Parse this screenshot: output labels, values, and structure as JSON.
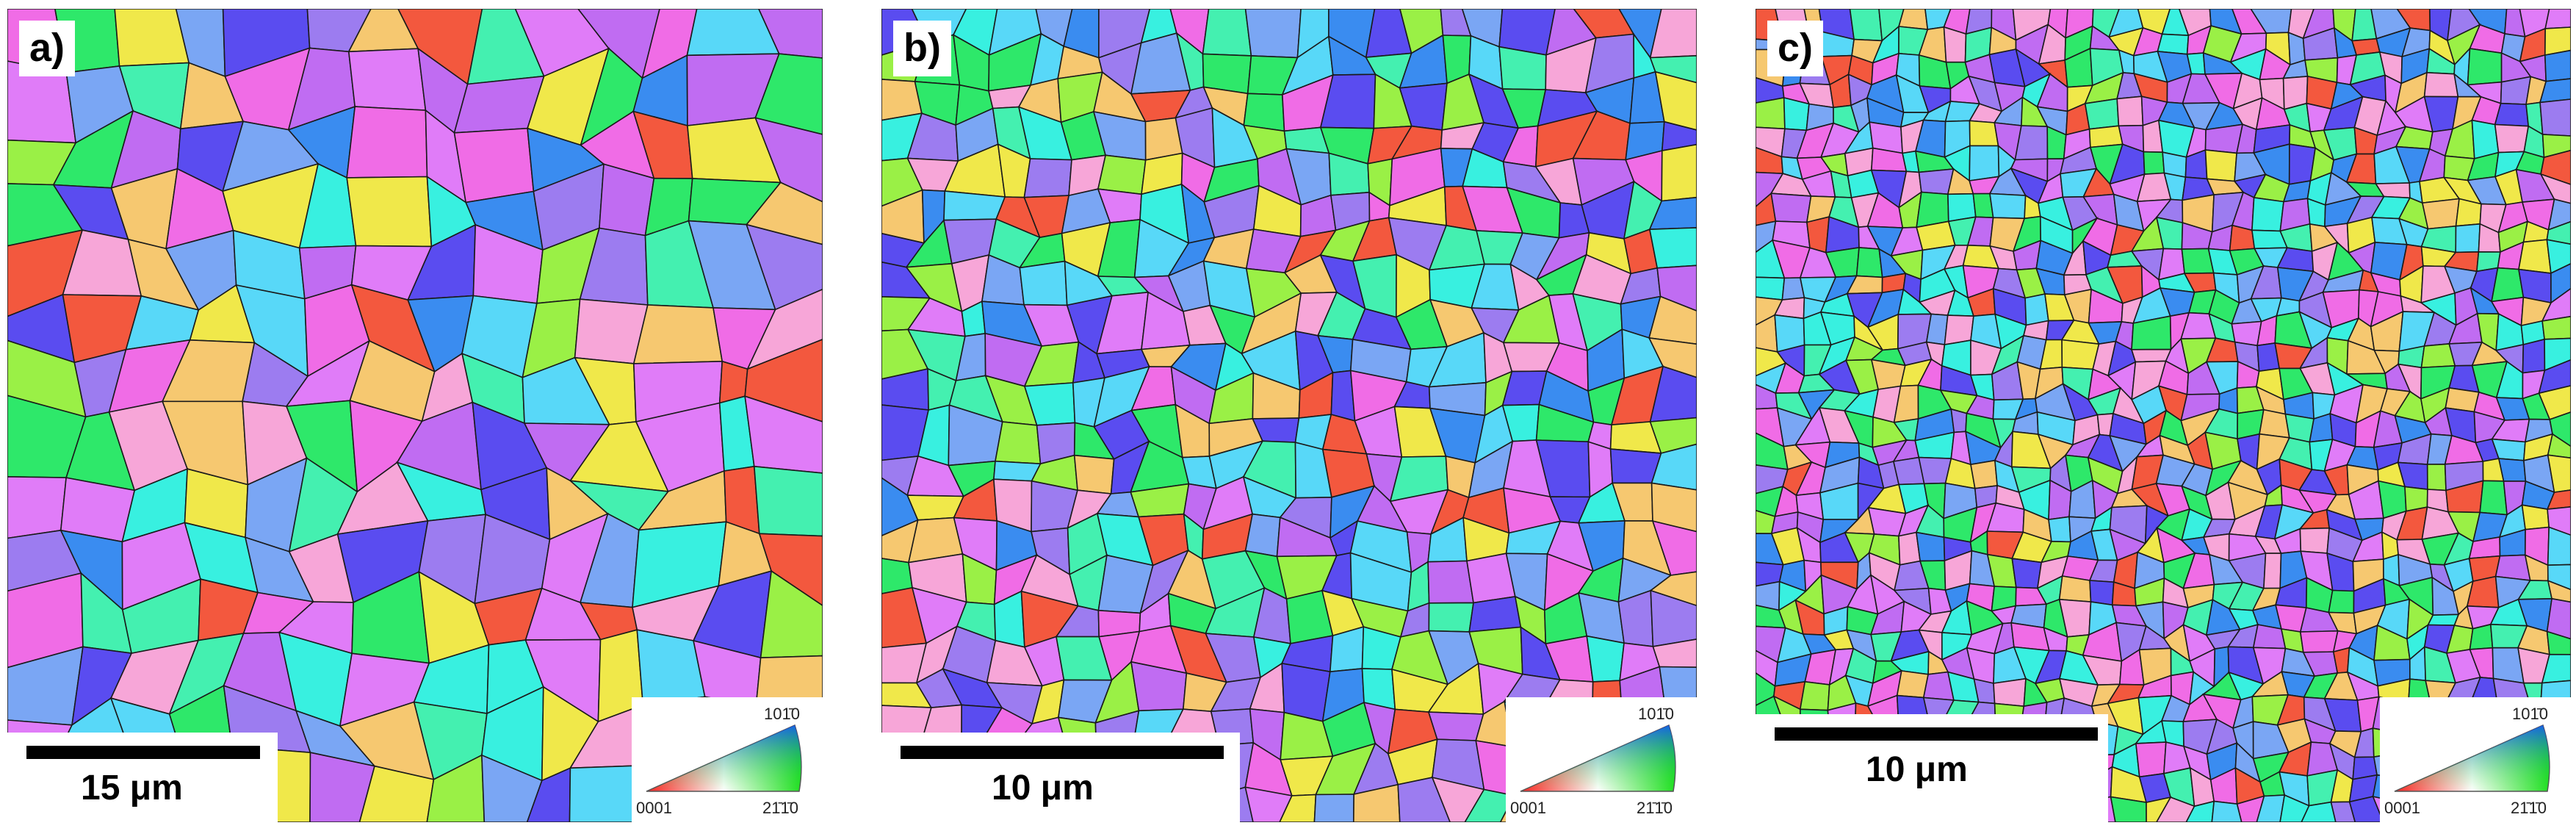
{
  "panels": [
    {
      "label": "a)",
      "scalebar_label": "15 μm",
      "legend": {
        "top_label": "101̄0",
        "left_label": "0001",
        "right_label": "21̄1̄0"
      }
    },
    {
      "label": "b)",
      "scalebar_label": "10 μm",
      "legend": {
        "top_label": "101̄0",
        "left_label": "0001",
        "right_label": "21̄1̄0"
      }
    },
    {
      "label": "c)",
      "scalebar_label": "10 μm",
      "legend": {
        "top_label": "101̄0",
        "left_label": "0001",
        "right_label": "21̄1̄0"
      }
    }
  ],
  "colors": {
    "grain_palette": [
      "#2ee86a",
      "#38f0e0",
      "#3a8cf0",
      "#5a4cf0",
      "#9c7cf0",
      "#c06cf2",
      "#f06ce6",
      "#f7a6d8",
      "#f0e84a",
      "#f6c870",
      "#f3583e",
      "#9af046",
      "#58d8f8",
      "#7aa6f4",
      "#44f0b0",
      "#e07cf8"
    ],
    "boundary": "#1a1a1a",
    "twin_boundary": "#e03a2a",
    "legend_corner_0001": "#ff2020",
    "legend_corner_1010": "#1050ff",
    "legend_corner_2110": "#20e020"
  }
}
